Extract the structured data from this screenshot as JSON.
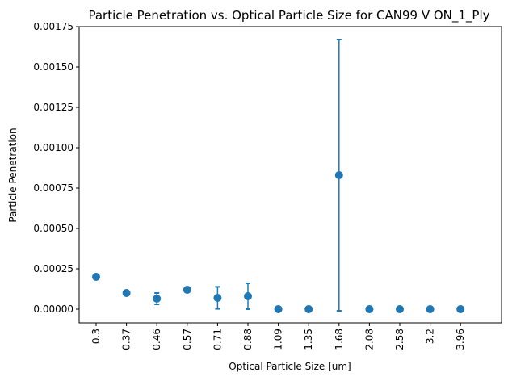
{
  "chart_data": {
    "type": "scatter",
    "title": "Particle Penetration vs. Optical Particle Size for CAN99 V ON_1_Ply",
    "xlabel": "Optical Particle Size [um]",
    "ylabel": "Particle Penetration",
    "categories": [
      "0.3",
      "0.37",
      "0.46",
      "0.57",
      "0.71",
      "0.88",
      "1.09",
      "1.35",
      "1.68",
      "2.08",
      "2.58",
      "3.2",
      "3.96"
    ],
    "values": [
      0.0002,
      0.0001,
      6.5e-05,
      0.00012,
      7e-05,
      8e-05,
      0.0,
      0.0,
      0.00083,
      0.0,
      0.0,
      0.0,
      0.0
    ],
    "error": [
      1.25e-05,
      7.5e-06,
      3.5e-05,
      7.5e-06,
      6.8e-05,
      8e-05,
      0.0,
      0.0,
      0.00084,
      0.0,
      0.0,
      0.0,
      0.0
    ],
    "ylim": [
      -8.5e-05,
      0.00175
    ],
    "yticks": [
      "0.00000",
      "0.00025",
      "0.00050",
      "0.00075",
      "0.00100",
      "0.00125",
      "0.00150",
      "0.00175"
    ],
    "ytick_values": [
      0,
      0.00025,
      0.0005,
      0.00075,
      0.001,
      0.00125,
      0.0015,
      0.00175
    ],
    "grid": false,
    "color": "#1f77b4"
  }
}
